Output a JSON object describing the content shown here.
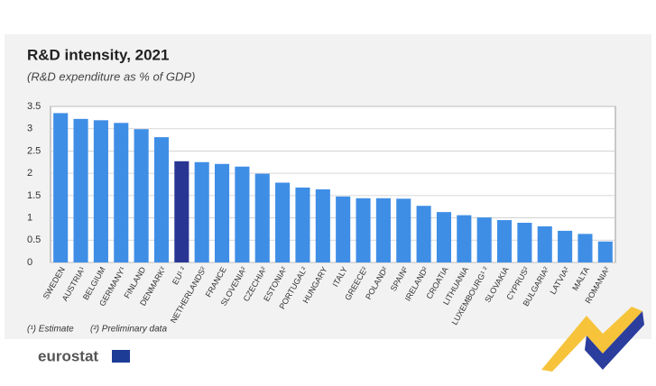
{
  "chart_data": {
    "type": "bar",
    "title": "R&D intensity, 2021",
    "subtitle": "(R&D expenditure as % of GDP)",
    "categories": [
      "SWEDEN",
      "AUSTRIA¹",
      "BELGIUM",
      "GERMANY¹",
      "FINLAND",
      "DENMARK²",
      "EU¹ ²",
      "NETHERLANDS²",
      "FRANCE",
      "SLOVENIA²",
      "CZECHIA²",
      "ESTONIA²",
      "PORTUGAL²",
      "HUNGARY",
      "ITALY",
      "GREECE²",
      "POLAND²",
      "SPAIN²",
      "IRELAND²",
      "CROATIA",
      "LITHUANIA",
      "LUXEMBOURG¹ ²",
      "SLOVAKIA",
      "CYPRUS²",
      "BULGARIA²",
      "LATVIA²",
      "MALTA",
      "ROMANIA²"
    ],
    "values": [
      3.35,
      3.22,
      3.19,
      3.13,
      2.99,
      2.81,
      2.27,
      2.25,
      2.21,
      2.15,
      1.99,
      1.79,
      1.68,
      1.64,
      1.48,
      1.44,
      1.44,
      1.43,
      1.27,
      1.13,
      1.06,
      1.01,
      0.95,
      0.89,
      0.81,
      0.71,
      0.64,
      0.47
    ],
    "colors": [
      "#3f8ee6",
      "#3f8ee6",
      "#3f8ee6",
      "#3f8ee6",
      "#3f8ee6",
      "#3f8ee6",
      "#283593",
      "#3f8ee6",
      "#3f8ee6",
      "#3f8ee6",
      "#3f8ee6",
      "#3f8ee6",
      "#3f8ee6",
      "#3f8ee6",
      "#3f8ee6",
      "#3f8ee6",
      "#3f8ee6",
      "#3f8ee6",
      "#3f8ee6",
      "#3f8ee6",
      "#3f8ee6",
      "#3f8ee6",
      "#3f8ee6",
      "#3f8ee6",
      "#3f8ee6",
      "#3f8ee6",
      "#3f8ee6",
      "#3f8ee6"
    ],
    "ylim": [
      0,
      3.5
    ],
    "yticks": [
      0,
      0.5,
      1,
      1.5,
      2,
      2.5,
      3,
      3.5
    ],
    "grid": true,
    "footnotes": [
      "(¹) Estimate",
      "(²) Preliminary data"
    ],
    "source": "eurostat"
  }
}
